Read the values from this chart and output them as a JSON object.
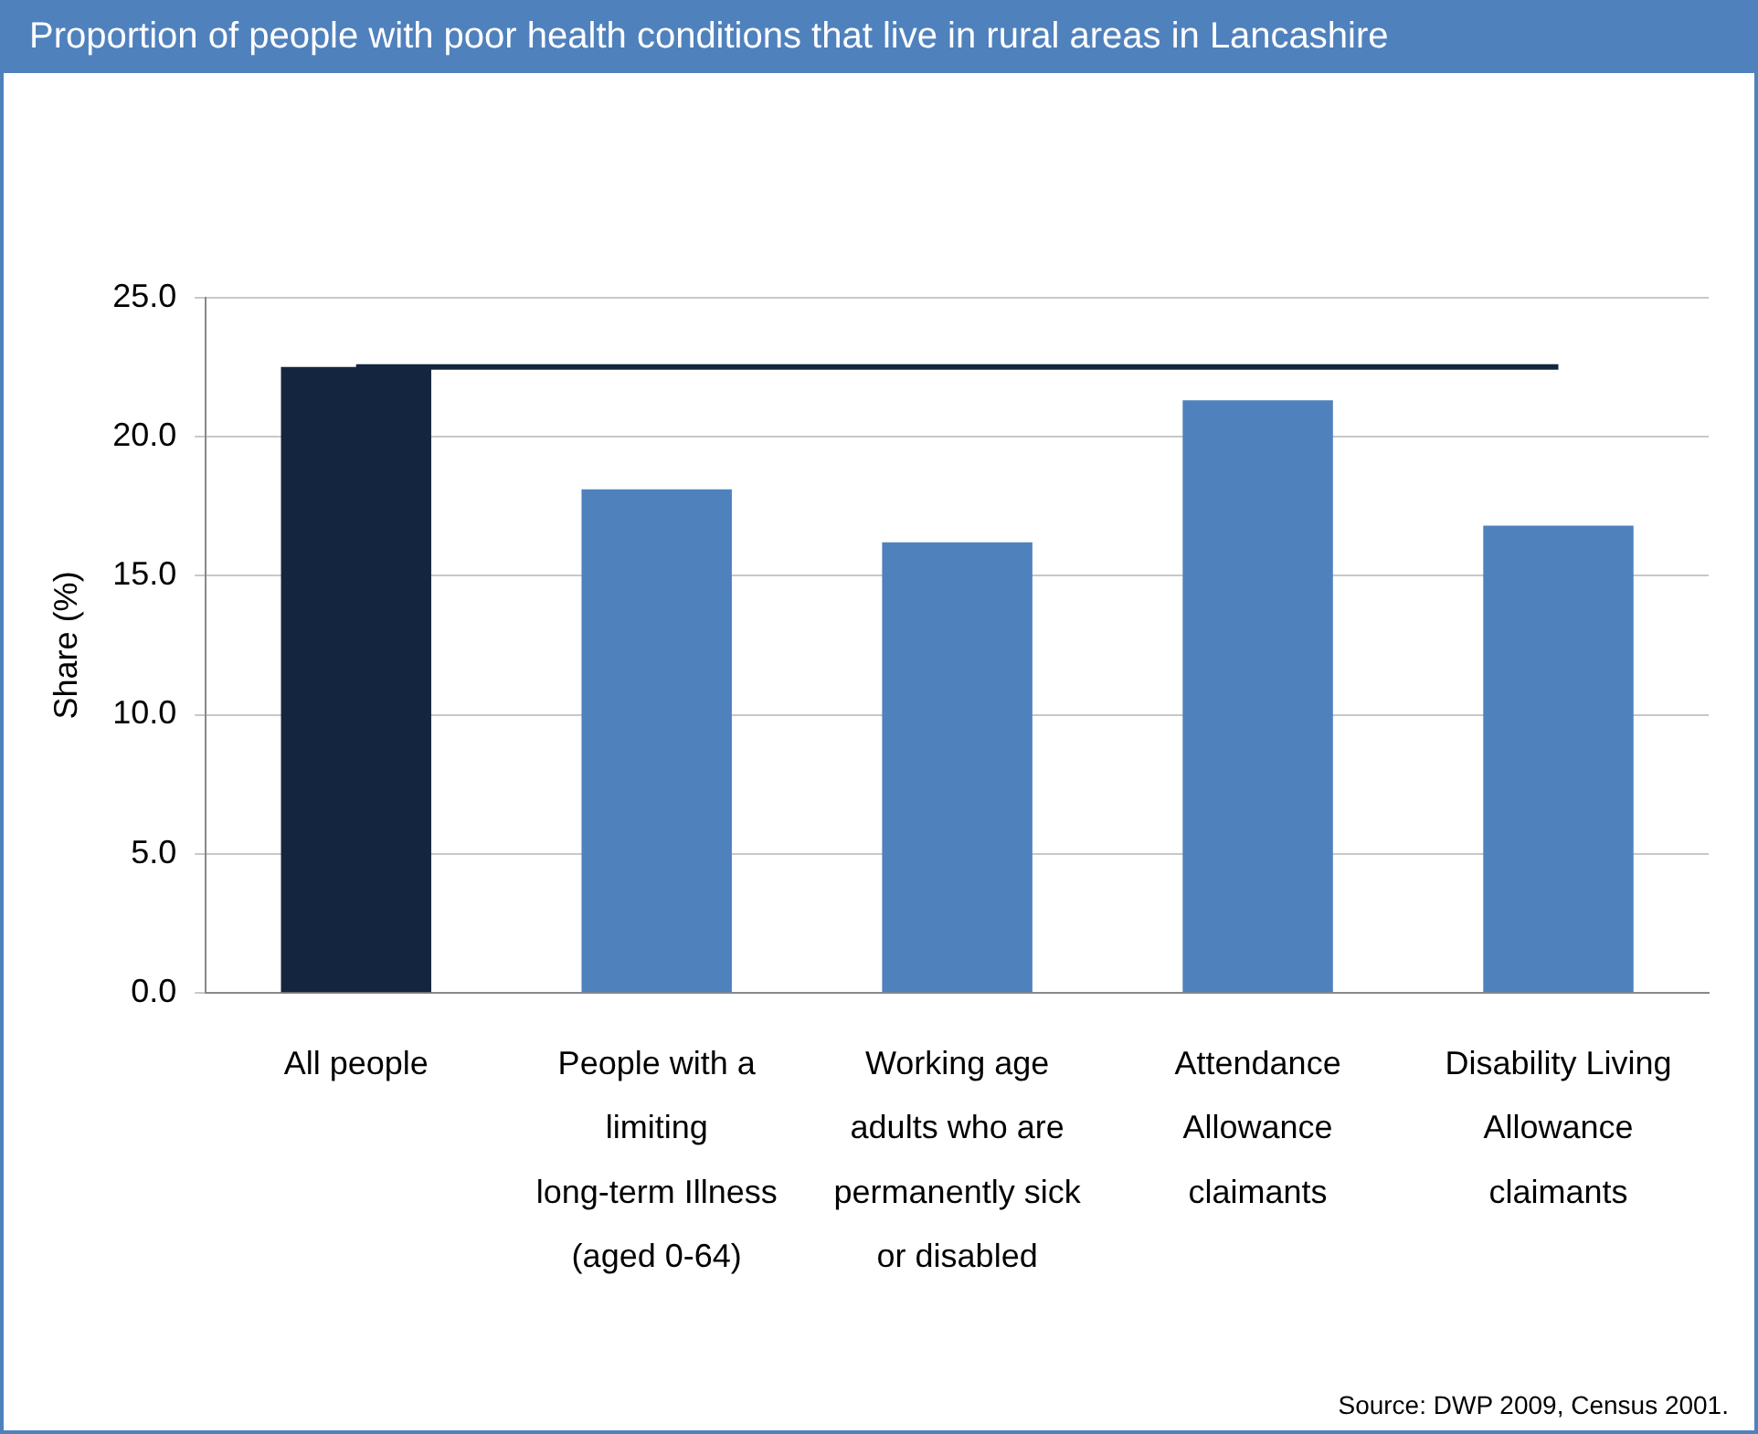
{
  "chart_data": {
    "type": "bar",
    "title": "Proportion of people with poor health conditions that live in rural areas in Lancashire",
    "ylabel": "Share (%)",
    "categories": [
      "All people",
      "People with a limiting long-term Illness (aged 0-64)",
      "Working age adults who are permanently sick or disabled",
      "Attendance Allowance claimants",
      "Disability Living Allowance claimants"
    ],
    "values": [
      22.5,
      18.1,
      16.2,
      21.3,
      16.8
    ],
    "colors": [
      "#14263f",
      "#4f81bd",
      "#4f81bd",
      "#4f81bd",
      "#4f81bd"
    ],
    "ylim": [
      0,
      25
    ],
    "yticks": [
      {
        "value": 0,
        "label": "0.0"
      },
      {
        "value": 5,
        "label": "5.0"
      },
      {
        "value": 10,
        "label": "10.0"
      },
      {
        "value": 15,
        "label": "15.0"
      },
      {
        "value": 20,
        "label": "20.0"
      },
      {
        "value": 25,
        "label": "25.0"
      }
    ],
    "ref_lines": [
      {
        "axis": "y",
        "value": 22.5,
        "color": "#14263f"
      }
    ],
    "grid": "y",
    "legend": false,
    "annotations": [
      "Source: DWP 2009, Census 2001."
    ]
  }
}
